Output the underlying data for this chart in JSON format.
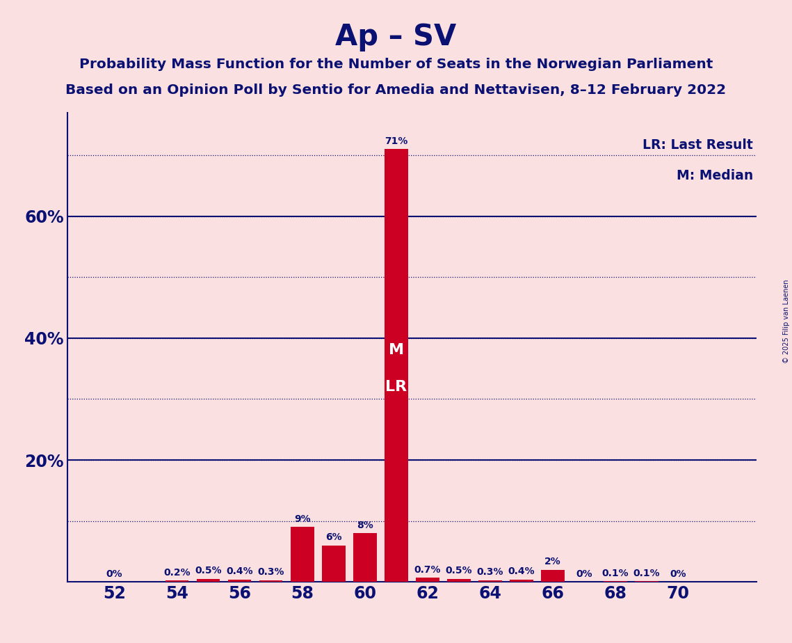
{
  "title": "Ap – SV",
  "subtitle1": "Probability Mass Function for the Number of Seats in the Norwegian Parliament",
  "subtitle2": "Based on an Opinion Poll by Sentio for Amedia and Nettavisen, 8–12 February 2022",
  "copyright": "© 2025 Filip van Laenen",
  "bar_color": "#CC0022",
  "background_color": "#FAE0E0",
  "text_color": "#0A1172",
  "legend_lr": "LR: Last Result",
  "legend_m": "M: Median",
  "xlabel_seats": [
    52,
    54,
    56,
    58,
    60,
    62,
    64,
    66,
    68,
    70
  ],
  "raw_seats": [
    52,
    53,
    54,
    55,
    56,
    57,
    58,
    59,
    60,
    61,
    62,
    63,
    64,
    65,
    66,
    67,
    68,
    69,
    70
  ],
  "raw_values": [
    0.0,
    0.0,
    0.2,
    0.5,
    0.4,
    0.3,
    9.0,
    6.0,
    8.0,
    71.0,
    0.7,
    0.5,
    0.3,
    0.4,
    2.0,
    0.0,
    0.1,
    0.1,
    0.0
  ],
  "raw_labels": [
    "0%",
    "",
    "0.2%",
    "0.5%",
    "0.4%",
    "0.3%",
    "9%",
    "6%",
    "8%",
    "71%",
    "0.7%",
    "0.5%",
    "0.3%",
    "0.4%",
    "2%",
    "0%",
    "0.1%",
    "0.1%",
    "0%"
  ],
  "median_seat": 61,
  "lr_seat": 61,
  "dotted_lines": [
    10,
    20,
    30,
    40,
    50,
    60,
    70
  ],
  "solid_lines": [
    20,
    40,
    60
  ],
  "ytick_positions": [
    20,
    40,
    60
  ],
  "ytick_labels": [
    "20%",
    "40%",
    "60%"
  ],
  "ylim_max": 77,
  "xlim_min": 50.5,
  "xlim_max": 72.5
}
